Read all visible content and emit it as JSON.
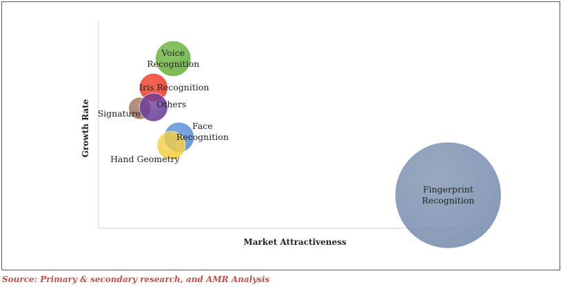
{
  "chart_data": {
    "type": "bubble",
    "title": "",
    "xlabel": "Market Attractiveness",
    "ylabel": "Growth Rate",
    "xlim": [
      0,
      100
    ],
    "ylim": [
      0,
      100
    ],
    "grid": false,
    "ticks": false,
    "series": [
      {
        "name": "Voice Recognition",
        "label_lines": [
          "Voice",
          "Recognition"
        ],
        "x": 19,
        "y": 82,
        "size": 4.5,
        "color": "#6ab23c"
      },
      {
        "name": "Iris Recognition",
        "label_lines": [
          "Iris Recognition"
        ],
        "x": 14,
        "y": 68,
        "size": 3.6,
        "color": "#f23a26"
      },
      {
        "name": "Signature",
        "label_lines": [
          "Signature"
        ],
        "x": 10.5,
        "y": 58,
        "size": 2.8,
        "color": "#a0725a"
      },
      {
        "name": "Others",
        "label_lines": [
          "Others"
        ],
        "x": 14,
        "y": 58.5,
        "size": 3.6,
        "color": "#6a3d9a"
      },
      {
        "name": "Face Recognition",
        "label_lines": [
          "Face",
          "Recognition"
        ],
        "x": 20.5,
        "y": 44,
        "size": 3.8,
        "color": "#5b8ed6"
      },
      {
        "name": "Hand Geometry",
        "label_lines": [
          "Hand Geometry"
        ],
        "x": 18.5,
        "y": 40,
        "size": 3.6,
        "color": "#f5cf45"
      },
      {
        "name": "Fingerprint Recognition",
        "label_lines": [
          "Fingerprint",
          "Recognition"
        ],
        "x": 89,
        "y": 16,
        "size": 13.5,
        "color": "#7a8fae"
      }
    ]
  },
  "source": "Source: Primary & secondary research, and AMR Analysis"
}
